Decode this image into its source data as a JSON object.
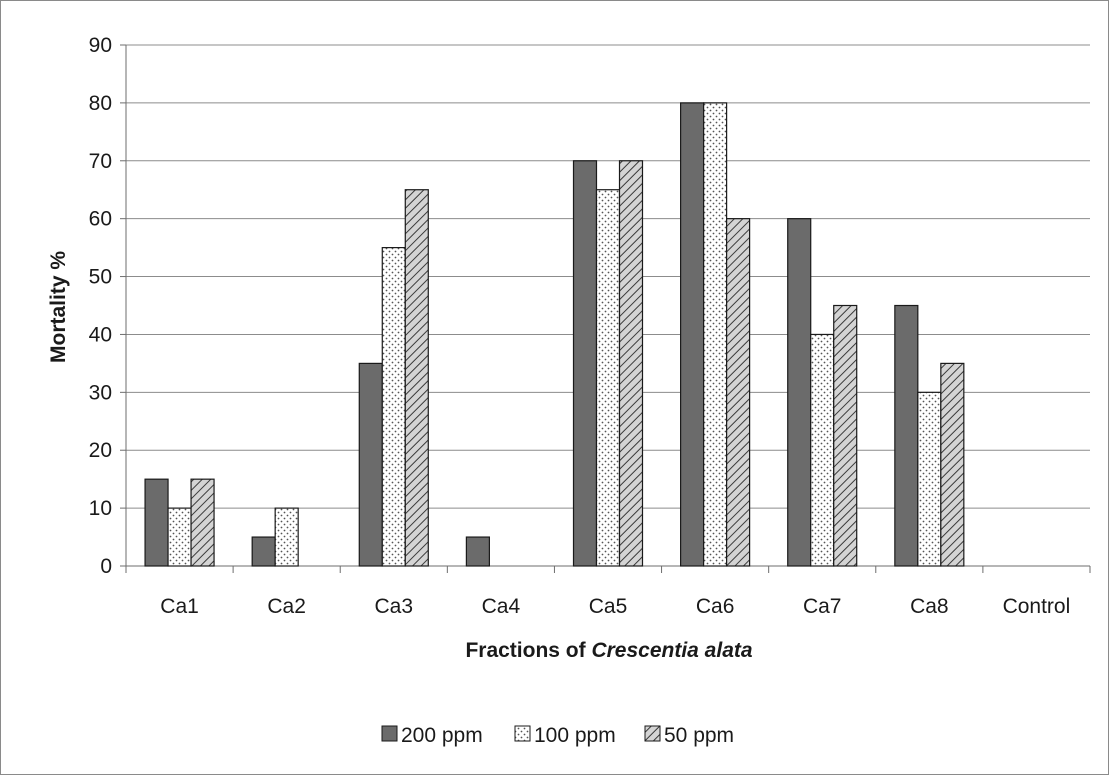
{
  "chart_data": {
    "type": "bar",
    "title": "",
    "xlabel_plain": "Fractions of ",
    "xlabel_italic": "Crescentia alata",
    "ylabel": "Mortality %",
    "ylim": [
      0,
      90
    ],
    "yticks": [
      0,
      10,
      20,
      30,
      40,
      50,
      60,
      70,
      80,
      90
    ],
    "grid": true,
    "legend_position": "bottom",
    "categories": [
      "Ca1",
      "Ca2",
      "Ca3",
      "Ca4",
      "Ca5",
      "Ca6",
      "Ca7",
      "Ca8",
      "Control"
    ],
    "series": [
      {
        "name": "200 ppm",
        "values": [
          15,
          5,
          35,
          5,
          70,
          80,
          60,
          45,
          0
        ],
        "pattern": "solid-dark",
        "color": "#6b6b6b"
      },
      {
        "name": "100 ppm",
        "values": [
          10,
          10,
          55,
          0,
          65,
          80,
          40,
          30,
          0
        ],
        "pattern": "dotted",
        "color": "#ffffff"
      },
      {
        "name": "50 ppm",
        "values": [
          15,
          0,
          65,
          0,
          70,
          60,
          45,
          35,
          0
        ],
        "pattern": "hatched",
        "color": "#c8c8c8"
      }
    ]
  }
}
